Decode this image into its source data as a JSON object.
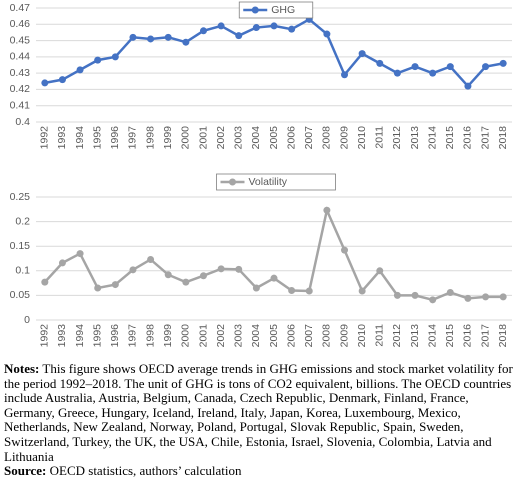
{
  "chart_data": [
    {
      "type": "line",
      "categories": [
        "1992",
        "1993",
        "1994",
        "1995",
        "1996",
        "1997",
        "1998",
        "1999",
        "2000",
        "2001",
        "2002",
        "2003",
        "2004",
        "2005",
        "2006",
        "2007",
        "2008",
        "2009",
        "2010",
        "2011",
        "2012",
        "2013",
        "2014",
        "2015",
        "2016",
        "2017",
        "2018"
      ],
      "series": [
        {
          "name": "GHG",
          "color": "#4472c4",
          "values": [
            0.424,
            0.426,
            0.432,
            0.438,
            0.44,
            0.452,
            0.451,
            0.452,
            0.449,
            0.456,
            0.459,
            0.453,
            0.458,
            0.459,
            0.457,
            0.463,
            0.454,
            0.429,
            0.442,
            0.436,
            0.43,
            0.434,
            0.43,
            0.434,
            0.422,
            0.434,
            0.436
          ]
        }
      ],
      "ylim": [
        0.4,
        0.47
      ],
      "yticks": [
        0.4,
        0.41,
        0.42,
        0.43,
        0.44,
        0.45,
        0.46,
        0.47
      ],
      "grid": true,
      "legend": "top"
    },
    {
      "type": "line",
      "categories": [
        "1992",
        "1993",
        "1994",
        "1995",
        "1996",
        "1997",
        "1998",
        "1999",
        "2000",
        "2001",
        "2002",
        "2003",
        "2004",
        "2005",
        "2006",
        "2007",
        "2008",
        "2009",
        "2010",
        "2011",
        "2012",
        "2013",
        "2014",
        "2015",
        "2016",
        "2017",
        "2018"
      ],
      "series": [
        {
          "name": "Volatility",
          "color": "#a5a5a5",
          "values": [
            0.077,
            0.116,
            0.135,
            0.065,
            0.072,
            0.102,
            0.123,
            0.092,
            0.077,
            0.09,
            0.104,
            0.103,
            0.065,
            0.085,
            0.06,
            0.059,
            0.223,
            0.142,
            0.059,
            0.1,
            0.05,
            0.05,
            0.041,
            0.056,
            0.044,
            0.047,
            0.047
          ]
        }
      ],
      "ylim": [
        0,
        0.25
      ],
      "yticks": [
        0,
        0.05,
        0.1,
        0.15,
        0.2,
        0.25
      ],
      "grid": true,
      "legend": "top"
    }
  ],
  "notes": {
    "label": "Notes:",
    "text": "This figure shows OECD average trends in GHG emissions and stock market volatility for the period 1992–2018. The unit of GHG is tons of CO2 equivalent, billions. The OECD countries include Australia, Austria, Belgium, Canada, Czech Republic, Denmark, Finland, France, Germany, Greece, Hungary, Iceland, Ireland, Italy, Japan, Korea, Luxembourg, Mexico, Netherlands, New Zealand, Norway, Poland, Portugal, Slovak Republic, Spain, Sweden, Switzerland, Turkey, the UK, the USA, Chile, Estonia, Israel, Slovenia, Colombia, Latvia and Lithuania"
  },
  "source": {
    "label": "Source:",
    "text": "OECD statistics, authors’ calculation"
  }
}
